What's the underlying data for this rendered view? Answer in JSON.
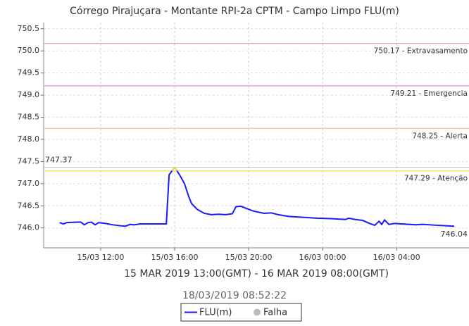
{
  "chart_data": {
    "type": "line",
    "title": "Córrego Pirajuçara - Montante RPI-2a CPTM - Campo Limpo FLU(m)",
    "x_label": "15 MAR 2019 13:00(GMT) - 16 MAR 2019 08:00(GMT)",
    "footer": "18/03/2019 08:52:22",
    "x": [
      "15/03 09:47",
      "15/03 09:59",
      "15/03 10:10",
      "15/03 10:45",
      "15/03 10:56",
      "15/03 11:07",
      "15/03 11:19",
      "15/03 11:30",
      "15/03 11:42",
      "15/03 11:53",
      "15/03 12:16",
      "15/03 12:39",
      "15/03 13:02",
      "15/03 13:20",
      "15/03 13:36",
      "15/03 13:47",
      "15/03 14:10",
      "15/03 15:33",
      "15/03 15:42",
      "15/03 16:00",
      "15/03 16:16",
      "15/03 16:32",
      "15/03 16:46",
      "15/03 16:55",
      "15/03 17:13",
      "15/03 17:36",
      "15/03 17:59",
      "15/03 18:22",
      "15/03 18:45",
      "15/03 19:07",
      "15/03 19:19",
      "15/03 19:35",
      "15/03 19:53",
      "15/03 20:16",
      "15/03 20:50",
      "15/03 21:13",
      "15/03 21:36",
      "15/03 22:10",
      "15/03 22:56",
      "15/03 23:42",
      "16/03 00:27",
      "16/03 01:13",
      "16/03 01:25",
      "16/03 01:47",
      "16/03 02:10",
      "16/03 02:33",
      "16/03 02:49",
      "16/03 03:03",
      "16/03 03:12",
      "16/03 03:21",
      "16/03 03:35",
      "16/03 03:53",
      "16/03 04:16",
      "16/03 04:39",
      "16/03 05:02",
      "16/03 05:25",
      "16/03 06:10",
      "16/03 07:07"
    ],
    "series": [
      {
        "name": "FLU(m)",
        "color": "#1a1aff",
        "values": [
          746.12,
          746.09,
          746.12,
          746.13,
          746.13,
          746.07,
          746.12,
          746.13,
          746.07,
          746.12,
          746.1,
          746.07,
          746.05,
          746.04,
          746.08,
          746.07,
          746.09,
          746.09,
          747.2,
          747.37,
          747.2,
          747.0,
          746.7,
          746.55,
          746.42,
          746.33,
          746.3,
          746.31,
          746.3,
          746.32,
          746.48,
          746.49,
          746.44,
          746.38,
          746.33,
          746.34,
          746.3,
          746.26,
          746.24,
          746.22,
          746.21,
          746.19,
          746.22,
          746.19,
          746.17,
          746.1,
          746.06,
          746.15,
          746.08,
          746.18,
          746.08,
          746.1,
          746.09,
          746.08,
          746.07,
          746.08,
          746.06,
          746.04
        ]
      }
    ],
    "legend_extra": {
      "name": "Falha",
      "color": "#bbbbbb"
    },
    "thresholds": [
      {
        "value": 750.17,
        "label": "750.17 - Extravasamento",
        "color": "#f29a9a"
      },
      {
        "value": 749.21,
        "label": "749.21 - Emergencia",
        "color": "#e68ae6"
      },
      {
        "value": 748.25,
        "label": "748.25 - Alerta",
        "color": "#f2c98c"
      },
      {
        "value": 747.29,
        "label": "747.29 - Atenção",
        "color": "#f2e24a"
      }
    ],
    "annotations": [
      {
        "value": 747.37,
        "label": "747.37"
      },
      {
        "value": 746.04,
        "label": "746.04"
      }
    ],
    "xlim": [
      "15/03 08:55",
      "16/03 07:55"
    ],
    "xticks": [
      "15/03 12:00",
      "15/03 16:00",
      "15/03 20:00",
      "16/03 00:00",
      "16/03 04:00"
    ],
    "ylim": [
      745.55,
      750.64
    ],
    "yticks": [
      {
        "value": 746,
        "label": "746.0"
      },
      746.5,
      {
        "value": 747,
        "label": "747.0"
      },
      747.5,
      {
        "value": 748,
        "label": "748.0"
      },
      748.5,
      {
        "value": 749,
        "label": "749.0"
      },
      749.5,
      {
        "value": 750,
        "label": "750.0"
      },
      750.5
    ],
    "grid": true
  }
}
